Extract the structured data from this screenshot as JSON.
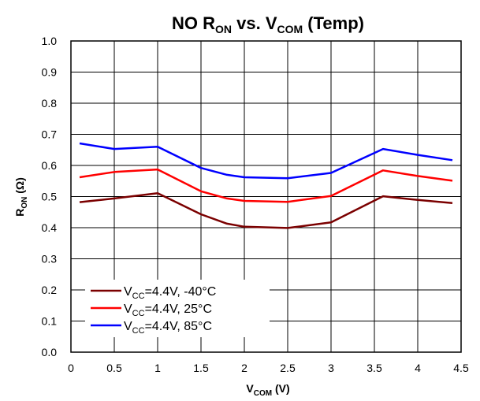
{
  "chart_data": {
    "type": "line",
    "title": {
      "parts": [
        "NO R",
        "ON",
        " vs. V",
        "COM",
        " (Temp)"
      ]
    },
    "xlabel": {
      "parts": [
        "V",
        "COM",
        " (V)"
      ]
    },
    "ylabel": {
      "parts": [
        "R",
        "ON",
        " (Ω)"
      ]
    },
    "xlim": [
      0,
      4.5
    ],
    "ylim": [
      0,
      1.0
    ],
    "xticks": [
      0,
      0.5,
      1,
      1.5,
      2,
      2.5,
      3,
      3.5,
      4,
      4.5
    ],
    "xtick_labels": [
      "0",
      "0.5",
      "1",
      "1.5",
      "2",
      "2.5",
      "3",
      "3.5",
      "4",
      "4.5"
    ],
    "yticks": [
      0,
      0.1,
      0.2,
      0.3,
      0.4,
      0.5,
      0.6,
      0.7,
      0.8,
      0.9,
      1.0
    ],
    "ytick_labels": [
      "0.0",
      "0.1",
      "0.2",
      "0.3",
      "0.4",
      "0.5",
      "0.6",
      "0.7",
      "0.8",
      "0.9",
      "1.0"
    ],
    "grid": true,
    "legend_position": "bottom-left",
    "series": [
      {
        "label_parts": [
          "V",
          "CC",
          "=4.4V, -40°C"
        ],
        "color": "#7b0000",
        "x": [
          0.1,
          0.5,
          1.0,
          1.5,
          1.8,
          2.0,
          2.5,
          3.0,
          3.6,
          4.0,
          4.4
        ],
        "y": [
          0.482,
          0.494,
          0.511,
          0.443,
          0.413,
          0.403,
          0.399,
          0.417,
          0.501,
          0.489,
          0.479
        ]
      },
      {
        "label_parts": [
          "V",
          "CC",
          "=4.4V, 25°C"
        ],
        "color": "#ff0000",
        "x": [
          0.1,
          0.5,
          1.0,
          1.5,
          1.8,
          2.0,
          2.5,
          3.0,
          3.6,
          4.0,
          4.4
        ],
        "y": [
          0.562,
          0.579,
          0.587,
          0.517,
          0.494,
          0.486,
          0.483,
          0.502,
          0.584,
          0.566,
          0.551
        ]
      },
      {
        "label_parts": [
          "V",
          "CC",
          "=4.4V,  85°C"
        ],
        "color": "#0000ff",
        "x": [
          0.1,
          0.5,
          1.0,
          1.5,
          1.8,
          2.0,
          2.5,
          3.0,
          3.6,
          4.0,
          4.4
        ],
        "y": [
          0.671,
          0.653,
          0.66,
          0.592,
          0.57,
          0.562,
          0.559,
          0.576,
          0.653,
          0.634,
          0.617
        ]
      }
    ]
  }
}
